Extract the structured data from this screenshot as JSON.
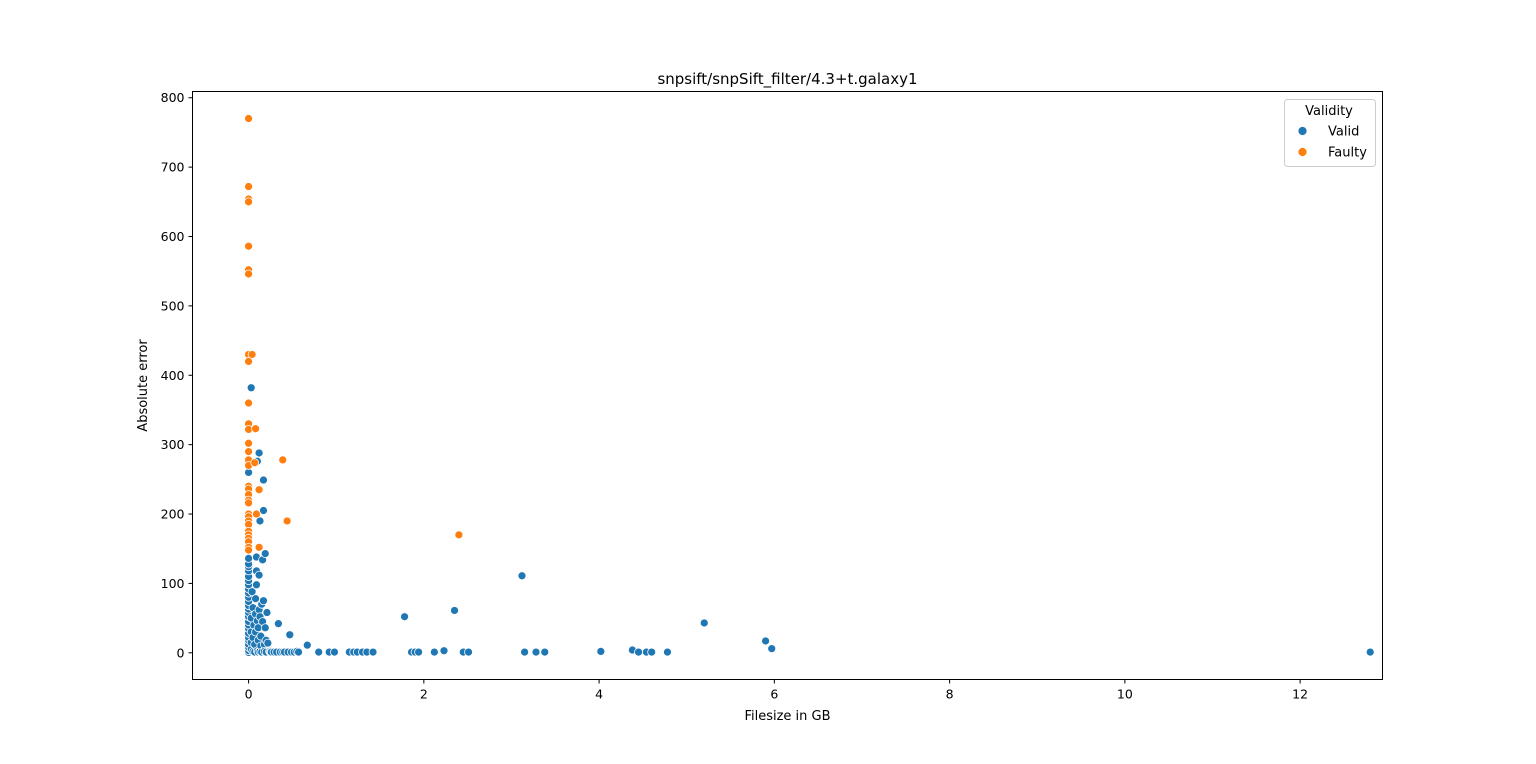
{
  "chart_data": {
    "type": "scatter",
    "title": "snpsift/snpSift_filter/4.3+t.galaxy1",
    "xlabel": "Filesize in GB",
    "ylabel": "Absolute error",
    "xlim": [
      -0.64,
      12.94
    ],
    "ylim": [
      -38.5,
      809
    ],
    "xticks": [
      0,
      2,
      4,
      6,
      8,
      10,
      12
    ],
    "yticks": [
      0,
      100,
      200,
      300,
      400,
      500,
      600,
      700,
      800
    ],
    "grid": false,
    "legend": {
      "title": "Validity",
      "placement": "top-right"
    },
    "series": [
      {
        "name": "Valid",
        "color": "#1f77b4",
        "points": [
          [
            0.0,
            0.5
          ],
          [
            0.0,
            3
          ],
          [
            0.0,
            8
          ],
          [
            0.0,
            12
          ],
          [
            0.0,
            18
          ],
          [
            0.0,
            22
          ],
          [
            0.0,
            28
          ],
          [
            0.0,
            35
          ],
          [
            0.0,
            40
          ],
          [
            0.0,
            45
          ],
          [
            0.0,
            52
          ],
          [
            0.0,
            58
          ],
          [
            0.0,
            63
          ],
          [
            0.0,
            68
          ],
          [
            0.0,
            74
          ],
          [
            0.0,
            80
          ],
          [
            0.0,
            86
          ],
          [
            0.0,
            92
          ],
          [
            0.0,
            98
          ],
          [
            0.0,
            104
          ],
          [
            0.0,
            110
          ],
          [
            0.0,
            118
          ],
          [
            0.0,
            124
          ],
          [
            0.0,
            128
          ],
          [
            0.0,
            136
          ],
          [
            0.0,
            260
          ],
          [
            0.03,
            382
          ],
          [
            0.03,
            5
          ],
          [
            0.03,
            15
          ],
          [
            0.03,
            30
          ],
          [
            0.03,
            50
          ],
          [
            0.04,
            88
          ],
          [
            0.05,
            2
          ],
          [
            0.05,
            22
          ],
          [
            0.05,
            65
          ],
          [
            0.06,
            40
          ],
          [
            0.07,
            1
          ],
          [
            0.07,
            12
          ],
          [
            0.08,
            30
          ],
          [
            0.08,
            56
          ],
          [
            0.08,
            78
          ],
          [
            0.09,
            98
          ],
          [
            0.09,
            118
          ],
          [
            0.09,
            138
          ],
          [
            0.1,
            276
          ],
          [
            0.1,
            3
          ],
          [
            0.1,
            46
          ],
          [
            0.11,
            1
          ],
          [
            0.11,
            18
          ],
          [
            0.11,
            36
          ],
          [
            0.12,
            62
          ],
          [
            0.12,
            288
          ],
          [
            0.12,
            112
          ],
          [
            0.13,
            190
          ],
          [
            0.13,
            52
          ],
          [
            0.13,
            2
          ],
          [
            0.14,
            10
          ],
          [
            0.14,
            24
          ],
          [
            0.15,
            70
          ],
          [
            0.15,
            1
          ],
          [
            0.16,
            134
          ],
          [
            0.16,
            45
          ],
          [
            0.17,
            205
          ],
          [
            0.17,
            249
          ],
          [
            0.17,
            75
          ],
          [
            0.18,
            12
          ],
          [
            0.18,
            2
          ],
          [
            0.19,
            143
          ],
          [
            0.19,
            36
          ],
          [
            0.2,
            18
          ],
          [
            0.2,
            1
          ],
          [
            0.21,
            58
          ],
          [
            0.22,
            14
          ],
          [
            0.24,
            2
          ],
          [
            0.25,
            1
          ],
          [
            0.26,
            1
          ],
          [
            0.29,
            1
          ],
          [
            0.32,
            1
          ],
          [
            0.34,
            42
          ],
          [
            0.36,
            1
          ],
          [
            0.39,
            1
          ],
          [
            0.41,
            1
          ],
          [
            0.45,
            1
          ],
          [
            0.47,
            26
          ],
          [
            0.49,
            1
          ],
          [
            0.52,
            1
          ],
          [
            0.55,
            2
          ],
          [
            0.57,
            1
          ],
          [
            0.67,
            11
          ],
          [
            0.8,
            1
          ],
          [
            0.92,
            1
          ],
          [
            0.98,
            1
          ],
          [
            1.15,
            1
          ],
          [
            1.2,
            1
          ],
          [
            1.24,
            1
          ],
          [
            1.3,
            1
          ],
          [
            1.35,
            1
          ],
          [
            1.42,
            1
          ],
          [
            1.78,
            52
          ],
          [
            1.86,
            1
          ],
          [
            1.9,
            1
          ],
          [
            1.94,
            1
          ],
          [
            2.12,
            1
          ],
          [
            2.23,
            3
          ],
          [
            2.35,
            61
          ],
          [
            2.45,
            1
          ],
          [
            2.51,
            1
          ],
          [
            3.12,
            111
          ],
          [
            3.15,
            1
          ],
          [
            3.28,
            1
          ],
          [
            3.38,
            1
          ],
          [
            4.02,
            2
          ],
          [
            4.38,
            4
          ],
          [
            4.45,
            1
          ],
          [
            4.54,
            1
          ],
          [
            4.6,
            1
          ],
          [
            4.78,
            1
          ],
          [
            5.2,
            43
          ],
          [
            5.9,
            17
          ],
          [
            5.97,
            6
          ],
          [
            12.8,
            1
          ]
        ]
      },
      {
        "name": "Faulty",
        "color": "#ff7f0e",
        "points": [
          [
            0.0,
            770
          ],
          [
            0.0,
            672
          ],
          [
            0.0,
            654
          ],
          [
            0.0,
            650
          ],
          [
            0.0,
            586
          ],
          [
            0.0,
            552
          ],
          [
            0.0,
            546
          ],
          [
            0.0,
            430
          ],
          [
            0.0,
            420
          ],
          [
            0.0,
            360
          ],
          [
            0.0,
            330
          ],
          [
            0.0,
            322
          ],
          [
            0.0,
            302
          ],
          [
            0.0,
            290
          ],
          [
            0.0,
            278
          ],
          [
            0.0,
            270
          ],
          [
            0.0,
            240
          ],
          [
            0.0,
            236
          ],
          [
            0.0,
            228
          ],
          [
            0.0,
            220
          ],
          [
            0.0,
            216
          ],
          [
            0.0,
            200
          ],
          [
            0.0,
            196
          ],
          [
            0.0,
            190
          ],
          [
            0.0,
            185
          ],
          [
            0.0,
            175
          ],
          [
            0.0,
            170
          ],
          [
            0.0,
            165
          ],
          [
            0.0,
            160
          ],
          [
            0.0,
            152
          ],
          [
            0.0,
            148
          ],
          [
            0.04,
            430
          ],
          [
            0.07,
            274
          ],
          [
            0.08,
            323
          ],
          [
            0.09,
            200
          ],
          [
            0.12,
            235
          ],
          [
            0.12,
            152
          ],
          [
            0.39,
            278
          ],
          [
            0.44,
            190
          ],
          [
            2.4,
            170
          ]
        ]
      }
    ]
  }
}
